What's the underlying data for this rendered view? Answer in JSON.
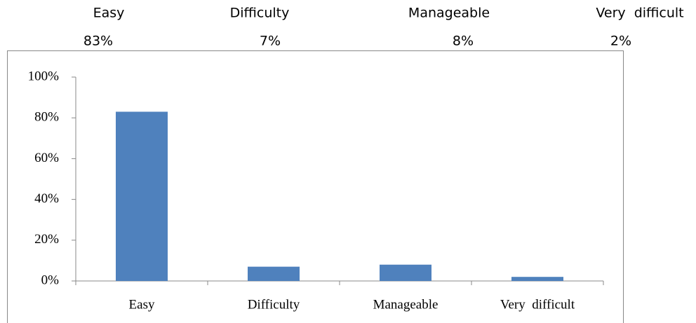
{
  "chart_data": {
    "type": "bar",
    "categories": [
      "Easy",
      "Difficulty",
      "Manageable",
      "Very  difficult"
    ],
    "values": [
      83,
      7,
      8,
      2
    ],
    "value_labels": [
      "83%",
      "7%",
      "8%",
      "2%"
    ],
    "color": "#4f81bd",
    "ylim": [
      0,
      100
    ],
    "yticks": [
      {
        "value": 0,
        "label": "0%"
      },
      {
        "value": 20,
        "label": "20%"
      },
      {
        "value": 40,
        "label": "40%"
      },
      {
        "value": 60,
        "label": "60%"
      },
      {
        "value": 80,
        "label": "80%"
      },
      {
        "value": 100,
        "label": "100%"
      }
    ]
  }
}
